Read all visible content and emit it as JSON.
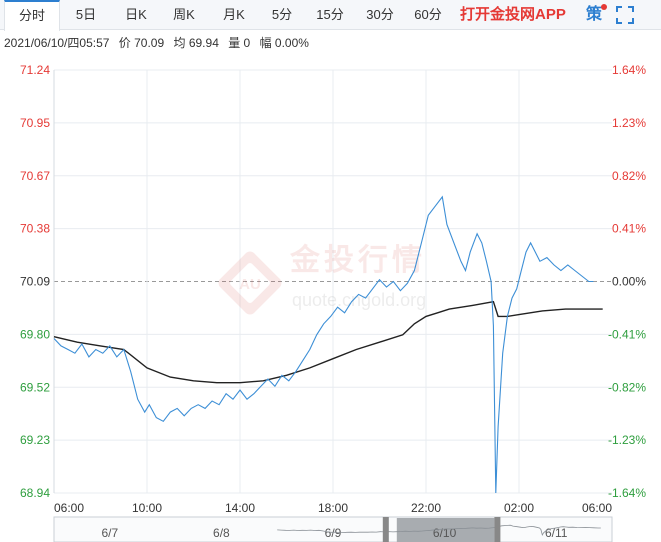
{
  "tabs": [
    {
      "label": "分时",
      "active": true
    },
    {
      "label": "5日"
    },
    {
      "label": "日K"
    },
    {
      "label": "周K"
    },
    {
      "label": "月K"
    },
    {
      "label": "5分"
    },
    {
      "label": "15分"
    },
    {
      "label": "30分"
    },
    {
      "label": "60分"
    }
  ],
  "promo_label": "打开金投网APP",
  "strategy_label": "策",
  "info": {
    "datetime": "2021/06/10/四05:57",
    "price": "价 70.09",
    "avg": "均 69.94",
    "volume": "量 0",
    "change": "幅 0.00%"
  },
  "watermark": {
    "brand": "金投行情",
    "domain": "quote.cngold.org"
  },
  "colors": {
    "up": "#e53935",
    "down": "#2e9e3e",
    "neutral": "#333333",
    "price_line": "#3d8fd6",
    "avg_line": "#222222",
    "accent": "#2d7fd0"
  },
  "navigator": {
    "labels": [
      "6/7",
      "6/8",
      "6/9",
      "6/10",
      "6/11"
    ],
    "selected_index": 3
  },
  "chart_data": {
    "type": "line",
    "base_price": 70.09,
    "y_ticks": [
      "71.24",
      "70.95",
      "70.67",
      "70.38",
      "70.09",
      "69.80",
      "69.52",
      "69.23",
      "68.94"
    ],
    "pct_ticks": [
      "1.64%",
      "1.23%",
      "0.82%",
      "0.41%",
      "0.00%",
      "-0.41%",
      "-0.82%",
      "-1.23%",
      "-1.64%"
    ],
    "x_ticks": [
      "06:00",
      "10:00",
      "14:00",
      "18:00",
      "22:00",
      "02:00",
      "06:00"
    ],
    "ylim": [
      68.94,
      71.24
    ],
    "xlim_hours": [
      0,
      24
    ],
    "series": [
      {
        "points": [
          [
            0,
            69.78
          ],
          [
            0.3,
            69.74
          ],
          [
            0.6,
            69.72
          ],
          [
            0.9,
            69.7
          ],
          [
            1.2,
            69.75
          ],
          [
            1.5,
            69.68
          ],
          [
            1.8,
            69.72
          ],
          [
            2.1,
            69.7
          ],
          [
            2.4,
            69.74
          ],
          [
            2.7,
            69.68
          ],
          [
            3.0,
            69.72
          ],
          [
            3.3,
            69.6
          ],
          [
            3.6,
            69.45
          ],
          [
            3.9,
            69.38
          ],
          [
            4.1,
            69.42
          ],
          [
            4.4,
            69.35
          ],
          [
            4.7,
            69.33
          ],
          [
            5.0,
            69.38
          ],
          [
            5.3,
            69.4
          ],
          [
            5.6,
            69.36
          ],
          [
            5.9,
            69.4
          ],
          [
            6.2,
            69.42
          ],
          [
            6.5,
            69.4
          ],
          [
            6.8,
            69.44
          ],
          [
            7.1,
            69.42
          ],
          [
            7.4,
            69.48
          ],
          [
            7.7,
            69.45
          ],
          [
            8.0,
            69.5
          ],
          [
            8.3,
            69.45
          ],
          [
            8.6,
            69.48
          ],
          [
            8.9,
            69.52
          ],
          [
            9.2,
            69.56
          ],
          [
            9.5,
            69.52
          ],
          [
            9.8,
            69.58
          ],
          [
            10.1,
            69.55
          ],
          [
            10.4,
            69.6
          ],
          [
            10.7,
            69.66
          ],
          [
            11.0,
            69.72
          ],
          [
            11.3,
            69.8
          ],
          [
            11.6,
            69.86
          ],
          [
            11.9,
            69.9
          ],
          [
            12.2,
            69.95
          ],
          [
            12.5,
            69.92
          ],
          [
            12.8,
            69.98
          ],
          [
            13.1,
            70.02
          ],
          [
            13.4,
            70.0
          ],
          [
            13.7,
            70.05
          ],
          [
            14.0,
            70.1
          ],
          [
            14.3,
            70.06
          ],
          [
            14.6,
            70.09
          ],
          [
            14.9,
            70.04
          ],
          [
            15.2,
            70.08
          ],
          [
            15.5,
            70.15
          ],
          [
            15.8,
            70.3
          ],
          [
            16.1,
            70.45
          ],
          [
            16.4,
            70.5
          ],
          [
            16.7,
            70.55
          ],
          [
            16.9,
            70.4
          ],
          [
            17.2,
            70.3
          ],
          [
            17.5,
            70.2
          ],
          [
            17.7,
            70.15
          ],
          [
            17.9,
            70.25
          ],
          [
            18.2,
            70.35
          ],
          [
            18.4,
            70.3
          ],
          [
            18.6,
            70.2
          ],
          [
            18.8,
            70.09
          ],
          [
            18.9,
            69.85
          ],
          [
            19.0,
            68.94
          ],
          [
            19.1,
            69.3
          ],
          [
            19.3,
            69.7
          ],
          [
            19.5,
            69.9
          ],
          [
            19.7,
            70.0
          ],
          [
            19.9,
            70.05
          ],
          [
            20.1,
            70.15
          ],
          [
            20.3,
            70.25
          ],
          [
            20.5,
            70.3
          ],
          [
            20.7,
            70.25
          ],
          [
            20.9,
            70.2
          ],
          [
            21.2,
            70.22
          ],
          [
            21.5,
            70.18
          ],
          [
            21.8,
            70.15
          ],
          [
            22.1,
            70.18
          ],
          [
            22.4,
            70.15
          ],
          [
            22.7,
            70.12
          ],
          [
            23.0,
            70.09
          ],
          [
            23.2,
            70.09
          ]
        ]
      },
      {
        "points": [
          [
            0,
            69.79
          ],
          [
            1,
            69.76
          ],
          [
            2,
            69.74
          ],
          [
            3,
            69.72
          ],
          [
            4,
            69.62
          ],
          [
            5,
            69.57
          ],
          [
            6,
            69.55
          ],
          [
            7,
            69.54
          ],
          [
            8,
            69.54
          ],
          [
            9,
            69.55
          ],
          [
            10,
            69.58
          ],
          [
            11,
            69.62
          ],
          [
            12,
            69.67
          ],
          [
            13,
            69.72
          ],
          [
            14,
            69.76
          ],
          [
            15,
            69.8
          ],
          [
            15.5,
            69.86
          ],
          [
            16,
            69.9
          ],
          [
            16.5,
            69.92
          ],
          [
            17,
            69.94
          ],
          [
            18,
            69.96
          ],
          [
            18.9,
            69.98
          ],
          [
            19.1,
            69.9
          ],
          [
            19.5,
            69.9
          ],
          [
            20,
            69.91
          ],
          [
            21,
            69.93
          ],
          [
            22,
            69.94
          ],
          [
            23,
            69.94
          ],
          [
            23.6,
            69.94
          ]
        ]
      }
    ]
  }
}
